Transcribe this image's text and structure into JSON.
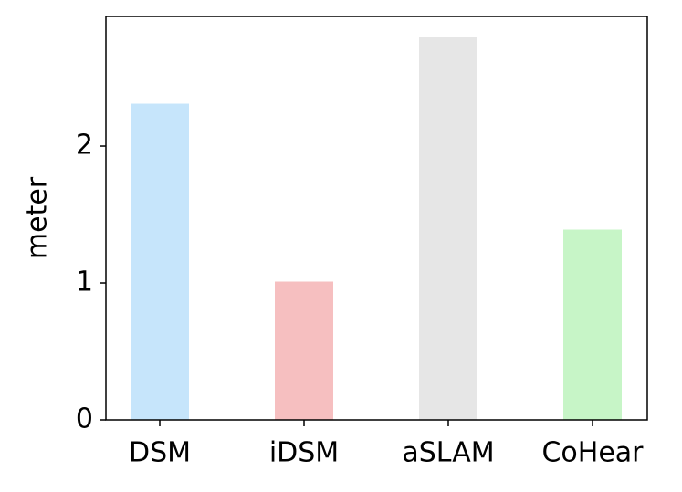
{
  "chart_data": {
    "type": "bar",
    "y_label": "meter",
    "categories": [
      "DSM",
      "iDSM",
      "aSLAM",
      "CoHear"
    ],
    "values": [
      2.31,
      1.01,
      2.8,
      1.39
    ],
    "colors": [
      "#c6e5fb",
      "#f6bfc0",
      "#e6e6e6",
      "#c7f5c7"
    ],
    "ylim": [
      0,
      2.947
    ],
    "yticks": [
      0,
      1,
      2
    ]
  }
}
